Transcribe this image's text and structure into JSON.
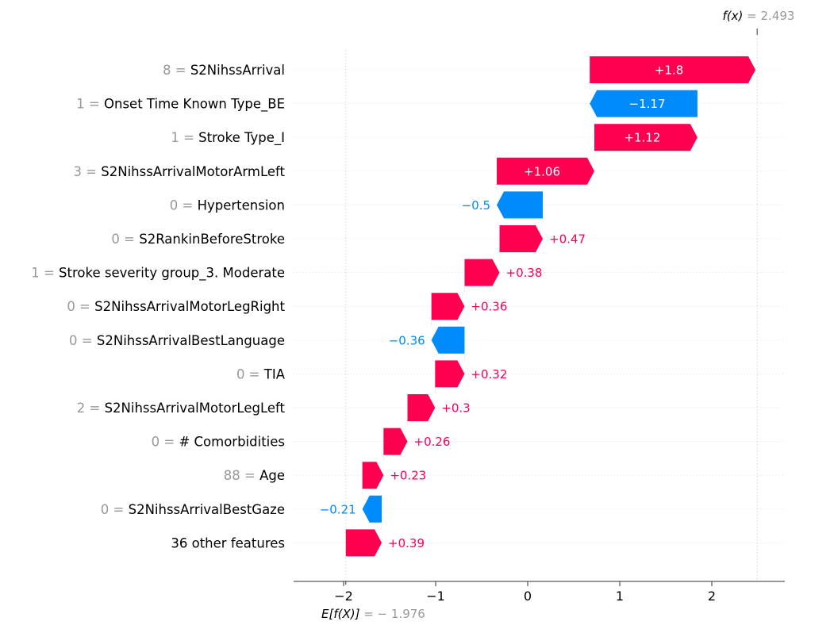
{
  "chart_data": {
    "type": "waterfall",
    "title": "",
    "xlabel": "",
    "ylabel": "",
    "base_value": -1.976,
    "output_value": 2.493,
    "fx_label": {
      "prefix": "f(x)",
      "eq": " = ",
      "value": "2.493"
    },
    "efx_label": {
      "prefix": "E[f(X)]",
      "eq": " = − ",
      "value": "1.976"
    },
    "xlim": [
      -2.55,
      2.8
    ],
    "xticks": [
      -2,
      -1,
      0,
      1,
      2
    ],
    "xtick_labels": [
      "−2",
      "−1",
      "0",
      "1",
      "2"
    ],
    "colors": {
      "positive": "#ff0051",
      "negative": "#008bfb",
      "gray": "#999999"
    },
    "features": [
      {
        "value": "8",
        "name": "S2NihssArrival",
        "shap": 1.8,
        "label": "+1.8"
      },
      {
        "value": "1",
        "name": "Onset Time Known Type_BE",
        "shap": -1.17,
        "label": "−1.17"
      },
      {
        "value": "1",
        "name": "Stroke Type_I",
        "shap": 1.12,
        "label": "+1.12"
      },
      {
        "value": "3",
        "name": "S2NihssArrivalMotorArmLeft",
        "shap": 1.06,
        "label": "+1.06"
      },
      {
        "value": "0",
        "name": "Hypertension",
        "shap": -0.5,
        "label": "−0.5"
      },
      {
        "value": "0",
        "name": "S2RankinBeforeStroke",
        "shap": 0.47,
        "label": "+0.47"
      },
      {
        "value": "1",
        "name": "Stroke severity group_3. Moderate",
        "shap": 0.38,
        "label": "+0.38"
      },
      {
        "value": "0",
        "name": "S2NihssArrivalMotorLegRight",
        "shap": 0.36,
        "label": "+0.36"
      },
      {
        "value": "0",
        "name": "S2NihssArrivalBestLanguage",
        "shap": -0.36,
        "label": "−0.36"
      },
      {
        "value": "0",
        "name": "TIA",
        "shap": 0.32,
        "label": "+0.32"
      },
      {
        "value": "2",
        "name": "S2NihssArrivalMotorLegLeft",
        "shap": 0.3,
        "label": "+0.3"
      },
      {
        "value": "0",
        "name": "# Comorbidities",
        "shap": 0.26,
        "label": "+0.26"
      },
      {
        "value": "88",
        "name": "Age",
        "shap": 0.23,
        "label": "+0.23"
      },
      {
        "value": "0",
        "name": "S2NihssArrivalBestGaze",
        "shap": -0.21,
        "label": "−0.21"
      },
      {
        "value": "",
        "name": "36 other features",
        "shap": 0.39,
        "label": "+0.39"
      }
    ]
  }
}
